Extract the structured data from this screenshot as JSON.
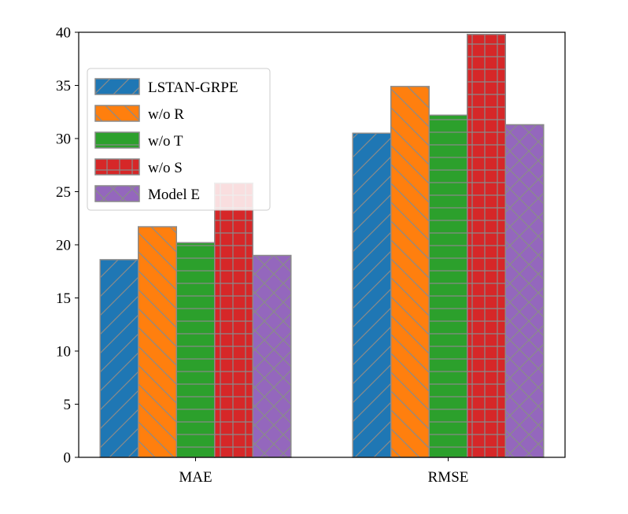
{
  "chart_data": {
    "type": "bar",
    "title": "",
    "xlabel": "",
    "ylabel": "",
    "categories": [
      "MAE",
      "RMSE"
    ],
    "ylim": [
      0,
      40
    ],
    "yticks": [
      0,
      5,
      10,
      15,
      20,
      25,
      30,
      35,
      40
    ],
    "grid": false,
    "legend_position": "top-left",
    "series": [
      {
        "name": "LSTAN-GRPE",
        "values": [
          18.6,
          30.5
        ],
        "color": "#1f77b4",
        "hatch": "forward-diagonal"
      },
      {
        "name": "w/o R",
        "values": [
          21.7,
          34.9
        ],
        "color": "#ff7f0e",
        "hatch": "back-diagonal"
      },
      {
        "name": "w/o T",
        "values": [
          20.2,
          32.2
        ],
        "color": "#2ca02c",
        "hatch": "horizontal"
      },
      {
        "name": "w/o S",
        "values": [
          25.8,
          39.8
        ],
        "color": "#d62728",
        "hatch": "grid"
      },
      {
        "name": "Model E",
        "values": [
          19.0,
          31.3
        ],
        "color": "#9467bd",
        "hatch": "cross-diagonal"
      }
    ]
  }
}
